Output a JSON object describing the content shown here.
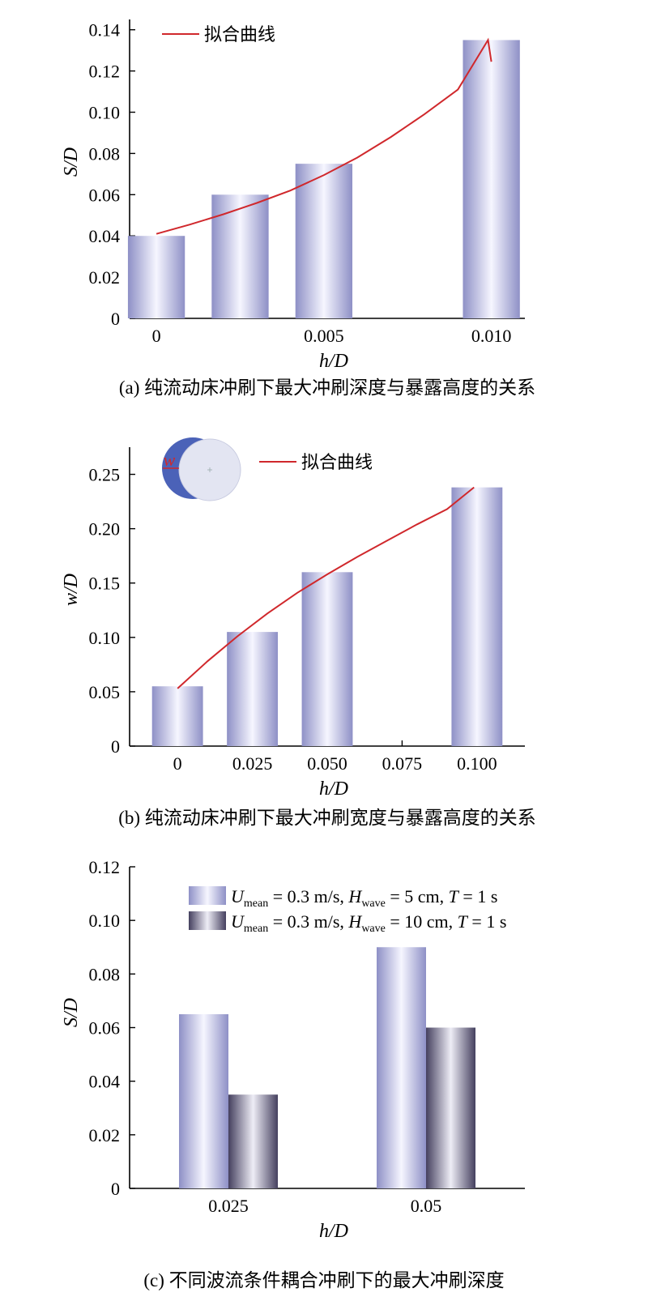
{
  "colors": {
    "bar_light_edge": "#8e90c6",
    "bar_light_center": "#f6f6ff",
    "bar_dark_edge": "#45405f",
    "bar_dark_center": "#eeedf6",
    "fit_curve": "#d0282c",
    "inset_crescent": "#4b62b8",
    "inset_disk": "#e3e5f2"
  },
  "chart_data": [
    {
      "id": "a",
      "type": "bar",
      "caption": "(a) 纯流动床冲刷下最大冲刷深度与暴露高度的关系",
      "xlabel_main": "h",
      "xlabel_rest": "/D",
      "ylabel_main": "S",
      "ylabel_rest": "/D",
      "x_ticks": [
        "0",
        "0.005",
        "0.010"
      ],
      "x_tick_values": [
        0,
        0.005,
        0.01
      ],
      "x_range": [
        -0.0008,
        0.011
      ],
      "y_ticks": [
        "0",
        "0.02",
        "0.04",
        "0.06",
        "0.08",
        "0.10",
        "0.12",
        "0.14"
      ],
      "ylim": [
        0,
        0.145
      ],
      "bars": [
        {
          "x": 0,
          "value": 0.04
        },
        {
          "x": 0.0025,
          "value": 0.06
        },
        {
          "x": 0.005,
          "value": 0.075
        },
        {
          "x": 0.01,
          "value": 0.135
        }
      ],
      "bar_width": 0.0017,
      "fit_curve": {
        "label": "拟合曲线",
        "points": [
          [
            0,
            0.041
          ],
          [
            0.001,
            0.0455
          ],
          [
            0.002,
            0.0505
          ],
          [
            0.003,
            0.056
          ],
          [
            0.004,
            0.062
          ],
          [
            0.005,
            0.0695
          ],
          [
            0.006,
            0.078
          ],
          [
            0.007,
            0.088
          ],
          [
            0.008,
            0.099
          ],
          [
            0.009,
            0.111
          ],
          [
            0.01,
            0.1245
          ],
          [
            0.0099,
            0.135
          ]
        ]
      }
    },
    {
      "id": "b",
      "type": "bar",
      "caption": "(b) 纯流动床冲刷下最大冲刷宽度与暴露高度的关系",
      "xlabel_main": "h",
      "xlabel_rest": "/D",
      "ylabel_main": "w",
      "ylabel_rest": "/D",
      "x_ticks": [
        "0",
        "0.025",
        "0.050",
        "0.075",
        "0.100"
      ],
      "x_tick_values": [
        0,
        0.025,
        0.05,
        0.075,
        0.1
      ],
      "x_range": [
        -0.016,
        0.116
      ],
      "y_ticks": [
        "0",
        "0.05",
        "0.10",
        "0.15",
        "0.20",
        "0.25"
      ],
      "ylim": [
        0,
        0.275
      ],
      "bars": [
        {
          "x": 0,
          "value": 0.055
        },
        {
          "x": 0.025,
          "value": 0.105
        },
        {
          "x": 0.05,
          "value": 0.16
        },
        {
          "x": 0.1,
          "value": 0.238
        }
      ],
      "bar_width": 0.017,
      "fit_curve": {
        "label": "拟合曲线",
        "points": [
          [
            0,
            0.053
          ],
          [
            0.01,
            0.078
          ],
          [
            0.02,
            0.101
          ],
          [
            0.03,
            0.122
          ],
          [
            0.04,
            0.141
          ],
          [
            0.05,
            0.158
          ],
          [
            0.06,
            0.174
          ],
          [
            0.07,
            0.189
          ],
          [
            0.08,
            0.204
          ],
          [
            0.09,
            0.218
          ],
          [
            0.099,
            0.238
          ]
        ]
      },
      "inset_label": "w"
    },
    {
      "id": "c",
      "type": "bar",
      "caption": "(c) 不同波流条件耦合冲刷下的最大冲刷深度",
      "xlabel_main": "h",
      "xlabel_rest": "/D",
      "ylabel_main": "S",
      "ylabel_rest": "/D",
      "categories": [
        "0.025",
        "0.05"
      ],
      "y_ticks": [
        "0",
        "0.02",
        "0.04",
        "0.06",
        "0.08",
        "0.10",
        "0.12"
      ],
      "ylim": [
        0,
        0.12
      ],
      "series": [
        {
          "name": "U_mean = 0.3 m/s, H_wave = 5 cm, T = 1 s",
          "legend_parts": [
            "U",
            "mean",
            " = 0.3 m/s, ",
            "H",
            "wave",
            " = 5 cm, ",
            "T",
            " = 1 s"
          ],
          "values": [
            0.065,
            0.09
          ]
        },
        {
          "name": "U_mean = 0.3 m/s, H_wave = 10 cm, T = 1 s",
          "legend_parts": [
            "U",
            "mean",
            " = 0.3 m/s, ",
            "H",
            "wave",
            " = 10 cm, ",
            "T",
            " = 1 s"
          ],
          "values": [
            0.035,
            0.06
          ]
        }
      ]
    }
  ]
}
